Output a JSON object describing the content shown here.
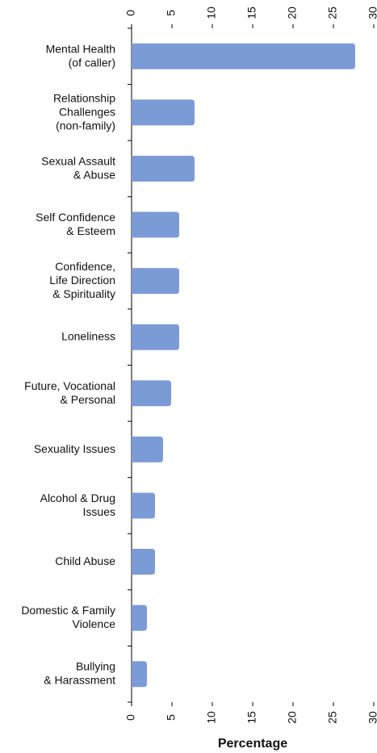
{
  "chart_data": {
    "type": "hbar",
    "categories": [
      [
        "Mental Health",
        "(of caller)"
      ],
      [
        "Relationship",
        "Challenges",
        "(non-family)"
      ],
      [
        "Sexual Assault",
        "& Abuse"
      ],
      [
        "Self Confidence",
        "& Esteem"
      ],
      [
        "Confidence,",
        "Life Direction",
        "& Spirituality"
      ],
      [
        "Loneliness"
      ],
      [
        "Future, Vocational",
        "& Personal"
      ],
      [
        "Sexuality Issues"
      ],
      [
        "Alcohol & Drug",
        "Issues"
      ],
      [
        "Child Abuse"
      ],
      [
        "Domestic & Family",
        "Violence"
      ],
      [
        "Bullying",
        "& Harassment"
      ]
    ],
    "values": [
      27.7,
      7.8,
      7.8,
      5.9,
      5.9,
      5.9,
      4.9,
      3.9,
      2.9,
      2.9,
      1.9,
      1.9
    ],
    "color": "#7b9bd6",
    "xlabel": "Percentage",
    "xlim": [
      0,
      30
    ],
    "xticks": [
      0,
      5,
      10,
      15,
      20,
      25,
      30
    ]
  }
}
